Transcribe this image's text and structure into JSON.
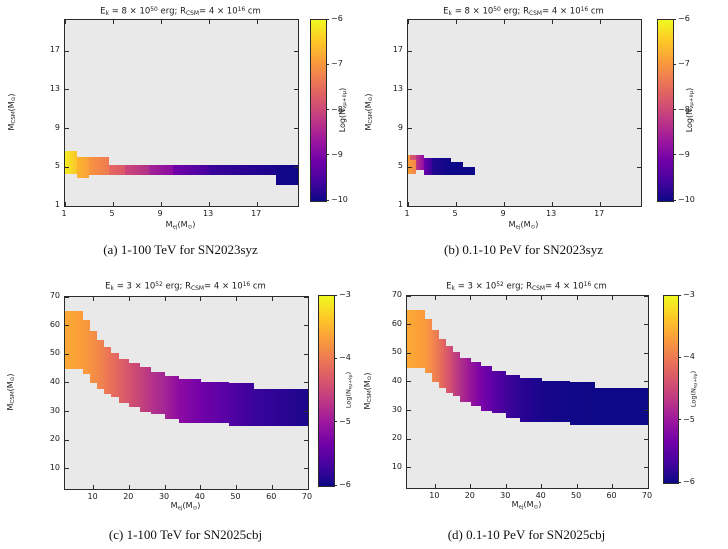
{
  "figure": {
    "background": "#ffffff",
    "plot_background": "#e9e9e9",
    "axis_color": "#2b2b2b",
    "colormap": "plasma",
    "colorbar_gradient_top_to_bottom": [
      "#f0f921",
      "#fdca26",
      "#fb9f3a",
      "#ed7953",
      "#d8576b",
      "#bd3786",
      "#9c179e",
      "#7201a8",
      "#46039f",
      "#0d0887"
    ]
  },
  "chart_data": [
    {
      "id": "a",
      "type": "heatmap",
      "caption": "(a) 1-100 TeV for SN2023syz",
      "title_parts": [
        {
          "t": "E"
        },
        {
          "t": "k",
          "sub": 1
        },
        {
          "t": " = 8 × 10"
        },
        {
          "t": "50",
          "sup": 1
        },
        {
          "t": " erg; R"
        },
        {
          "t": "CSM",
          "sub": 1
        },
        {
          "t": "= 4 × 10"
        },
        {
          "t": "16",
          "sup": 1
        },
        {
          "t": " cm"
        }
      ],
      "xlabel_parts": [
        {
          "t": "M"
        },
        {
          "t": "ej",
          "sub": 1
        },
        {
          "t": "("
        },
        {
          "t": "M"
        },
        {
          "t": "⊙",
          "sub": 1
        },
        {
          "t": ")"
        }
      ],
      "ylabel_parts": [
        {
          "t": "M"
        },
        {
          "t": "CSM",
          "sub": 1
        },
        {
          "t": "("
        },
        {
          "t": "M"
        },
        {
          "t": "⊙",
          "sub": 1
        },
        {
          "t": ")"
        }
      ],
      "x_range": [
        1,
        20.4
      ],
      "y_range": [
        1,
        20.2
      ],
      "x_ticks": [
        1,
        5,
        9,
        13,
        17
      ],
      "y_ticks": [
        1,
        5,
        9,
        13,
        17
      ],
      "colorbar": {
        "ticks": [
          -6,
          -7,
          -8,
          -9,
          -10
        ],
        "range": [
          -6,
          -10
        ],
        "label_parts": [
          {
            "t": "Log(N"
          },
          {
            "t": "νμ+ν̄μ",
            "sub": 1
          },
          {
            "t": ")"
          }
        ]
      },
      "cells": [
        [
          1,
          2,
          4.3,
          6.7,
          "#f3ef24",
          "#fcc32a"
        ],
        [
          2,
          3,
          3.9,
          6.1,
          "#fcb52c",
          "#fb9f3a"
        ],
        [
          3,
          4.7,
          4.2,
          6.1,
          "#f9953f",
          "#ed7953"
        ],
        [
          4.7,
          6,
          4.2,
          5.2,
          "#e66a5e",
          "#d8576b"
        ],
        [
          6,
          8,
          4.2,
          5.2,
          "#cc4778",
          "#b13189"
        ],
        [
          8,
          10,
          4.2,
          5.2,
          "#a32595",
          "#8a0ba1"
        ],
        [
          10,
          13,
          4.2,
          5.2,
          "#7201a8",
          "#46039f"
        ],
        [
          13,
          18.6,
          4.2,
          5.2,
          "#3a039a",
          "#19058b"
        ],
        [
          18.6,
          20.4,
          3.2,
          5.2,
          "#14058a",
          "#0d0887"
        ]
      ]
    },
    {
      "id": "b",
      "type": "heatmap",
      "caption": "(b) 0.1-10 PeV for SN2023syz",
      "title_parts": [
        {
          "t": "E"
        },
        {
          "t": "k",
          "sub": 1
        },
        {
          "t": " = 8 × 10"
        },
        {
          "t": "50",
          "sup": 1
        },
        {
          "t": " erg; R"
        },
        {
          "t": "CSM",
          "sub": 1
        },
        {
          "t": "= 4 × 10"
        },
        {
          "t": "16",
          "sup": 1
        },
        {
          "t": " cm"
        }
      ],
      "xlabel_parts": [
        {
          "t": "M"
        },
        {
          "t": "ej",
          "sub": 1
        },
        {
          "t": "("
        },
        {
          "t": "M"
        },
        {
          "t": "⊙",
          "sub": 1
        },
        {
          "t": ")"
        }
      ],
      "ylabel_parts": [
        {
          "t": "M"
        },
        {
          "t": "CSM",
          "sub": 1
        },
        {
          "t": "("
        },
        {
          "t": "M"
        },
        {
          "t": "⊙",
          "sub": 1
        },
        {
          "t": ")"
        }
      ],
      "x_range": [
        1,
        20.4
      ],
      "y_range": [
        1,
        20.2
      ],
      "x_ticks": [
        1,
        5,
        9,
        13,
        17
      ],
      "y_ticks": [
        1,
        5,
        9,
        13,
        17
      ],
      "colorbar": {
        "ticks": [
          -6,
          -7,
          -8,
          -9,
          -10
        ],
        "range": [
          -6,
          -10
        ],
        "label_parts": [
          {
            "t": "Log(N"
          },
          {
            "t": "νμ+ν̄μ",
            "sub": 1
          },
          {
            "t": ")"
          }
        ]
      },
      "cells": [
        [
          1,
          1.7,
          4.3,
          6.3,
          "#fb9f3a",
          "#f2854b"
        ],
        [
          1.15,
          1.7,
          5.7,
          6.3,
          "#d8576b",
          "#cf4e74"
        ],
        [
          1.7,
          2.3,
          4.7,
          6.3,
          "#bd3786",
          "#8d0ba3"
        ],
        [
          2.3,
          3.0,
          4.2,
          6.0,
          "#6b01a8",
          "#3c039b"
        ],
        [
          3.0,
          4.6,
          4.2,
          6.0,
          "#22068f",
          "#0d0887"
        ],
        [
          4.6,
          5.6,
          4.2,
          5.5,
          "#0d0887",
          "#0d0887"
        ],
        [
          5.6,
          6.6,
          4.2,
          5.0,
          "#0d0887",
          "#0d0887"
        ]
      ]
    },
    {
      "id": "c",
      "type": "heatmap",
      "caption": "(c) 1-100 TeV for SN2025cbj",
      "title_parts": [
        {
          "t": "E"
        },
        {
          "t": "k",
          "sub": 1
        },
        {
          "t": " = 3 × 10"
        },
        {
          "t": "52",
          "sup": 1
        },
        {
          "t": " erg; R"
        },
        {
          "t": "CSM",
          "sub": 1
        },
        {
          "t": "= 4 × 10"
        },
        {
          "t": "16",
          "sup": 1
        },
        {
          "t": " cm"
        }
      ],
      "xlabel_parts": [
        {
          "t": "M"
        },
        {
          "t": "ej",
          "sub": 1
        },
        {
          "t": "("
        },
        {
          "t": "M"
        },
        {
          "t": "⊙",
          "sub": 1
        },
        {
          "t": ")"
        }
      ],
      "ylabel_parts": [
        {
          "t": "M"
        },
        {
          "t": "CSM",
          "sub": 1
        },
        {
          "t": "("
        },
        {
          "t": "M"
        },
        {
          "t": "⊙",
          "sub": 1
        },
        {
          "t": ")"
        }
      ],
      "x_range": [
        2,
        70
      ],
      "y_range": [
        3,
        70
      ],
      "x_ticks": [
        10,
        20,
        30,
        40,
        50,
        60,
        70
      ],
      "y_ticks": [
        10,
        20,
        30,
        40,
        50,
        60,
        70
      ],
      "colorbar": {
        "ticks": [
          -3,
          -4,
          -5,
          -6
        ],
        "range": [
          -3,
          -6
        ],
        "label_parts": [
          {
            "t": "Log(N"
          },
          {
            "t": "νμ+ν̄μ",
            "sub": 1
          },
          {
            "t": ")"
          }
        ]
      },
      "cells": [
        [
          2,
          7,
          45,
          65,
          "#fbaa33",
          "#fb9b3c"
        ],
        [
          7,
          9,
          43,
          62,
          "#fb9b3c",
          "#f89342"
        ],
        [
          9,
          11,
          40,
          58,
          "#f89342",
          "#f28a49"
        ],
        [
          11,
          13,
          38,
          55,
          "#f28a49",
          "#ee7e51"
        ],
        [
          13,
          15,
          36,
          52.5,
          "#ee7e51",
          "#e87059"
        ],
        [
          15,
          17,
          35,
          50.5,
          "#e87059",
          "#e06463"
        ],
        [
          17,
          20,
          33,
          48.5,
          "#e06463",
          "#d4536f"
        ],
        [
          20,
          23,
          31.5,
          47,
          "#d4536f",
          "#c64379"
        ],
        [
          23,
          26,
          30,
          45.5,
          "#c64379",
          "#b63488"
        ],
        [
          26,
          30,
          29,
          44,
          "#b63488",
          "#a32595"
        ],
        [
          30,
          34,
          27.5,
          42.5,
          "#a32595",
          "#8d0ba3"
        ],
        [
          34,
          40,
          26,
          41.5,
          "#8d0ba3",
          "#7201a8"
        ],
        [
          40,
          48,
          26,
          40.5,
          "#7201a8",
          "#5502a5"
        ],
        [
          48,
          55,
          25,
          40,
          "#5502a5",
          "#3a039b"
        ],
        [
          55,
          70,
          25,
          38,
          "#3a039b",
          "#1c068c"
        ]
      ]
    },
    {
      "id": "d",
      "type": "heatmap",
      "caption": "(d) 0.1-10 PeV for SN2025cbj",
      "title_parts": [
        {
          "t": "E"
        },
        {
          "t": "k",
          "sub": 1
        },
        {
          "t": " = 3 × 10"
        },
        {
          "t": "52",
          "sup": 1
        },
        {
          "t": " erg; R"
        },
        {
          "t": "CSM",
          "sub": 1
        },
        {
          "t": "= 4 × 10"
        },
        {
          "t": "16",
          "sup": 1
        },
        {
          "t": " cm"
        }
      ],
      "xlabel_parts": [
        {
          "t": "M"
        },
        {
          "t": "ej",
          "sub": 1
        },
        {
          "t": "("
        },
        {
          "t": "M"
        },
        {
          "t": "⊙",
          "sub": 1
        },
        {
          "t": ")"
        }
      ],
      "ylabel_parts": [
        {
          "t": "M"
        },
        {
          "t": "CSM",
          "sub": 1
        },
        {
          "t": "("
        },
        {
          "t": "M"
        },
        {
          "t": "⊙",
          "sub": 1
        },
        {
          "t": ")"
        }
      ],
      "x_range": [
        2,
        70
      ],
      "y_range": [
        3,
        70
      ],
      "x_ticks": [
        10,
        20,
        30,
        40,
        50,
        60,
        70
      ],
      "y_ticks": [
        10,
        20,
        30,
        40,
        50,
        60,
        70
      ],
      "colorbar": {
        "ticks": [
          -3,
          -4,
          -5,
          -6
        ],
        "range": [
          -3,
          -6
        ],
        "label_parts": [
          {
            "t": "Log(N"
          },
          {
            "t": "νμ+ν̄μ",
            "sub": 1
          },
          {
            "t": ")"
          }
        ]
      },
      "cells": [
        [
          2,
          7,
          45,
          65,
          "#fbaa33",
          "#fb9a3c"
        ],
        [
          7,
          9,
          43,
          62,
          "#fb9a3c",
          "#f5894a"
        ],
        [
          9,
          11,
          40,
          58,
          "#f5894a",
          "#ea7456"
        ],
        [
          11,
          13,
          38,
          55,
          "#ea7456",
          "#dc5c68"
        ],
        [
          13,
          15,
          36,
          52.5,
          "#dc5c68",
          "#c94677"
        ],
        [
          15,
          17,
          35,
          50.5,
          "#c94677",
          "#b23189"
        ],
        [
          17,
          20,
          33,
          48.5,
          "#b23189",
          "#951499"
        ],
        [
          20,
          23,
          31.5,
          47,
          "#951499",
          "#7a02a8"
        ],
        [
          23,
          26,
          30,
          45.5,
          "#7a02a8",
          "#5e01a6"
        ],
        [
          26,
          30,
          29,
          44,
          "#5e01a6",
          "#43039c"
        ],
        [
          30,
          34,
          27.5,
          42.5,
          "#43039c",
          "#2b0494"
        ],
        [
          34,
          40,
          26,
          41.5,
          "#2b0494",
          "#19058b"
        ],
        [
          40,
          48,
          26,
          40.5,
          "#19058b",
          "#100888"
        ],
        [
          48,
          55,
          25,
          40,
          "#100888",
          "#0d0887"
        ],
        [
          55,
          70,
          25,
          38,
          "#0d0887",
          "#0d0887"
        ]
      ]
    }
  ]
}
